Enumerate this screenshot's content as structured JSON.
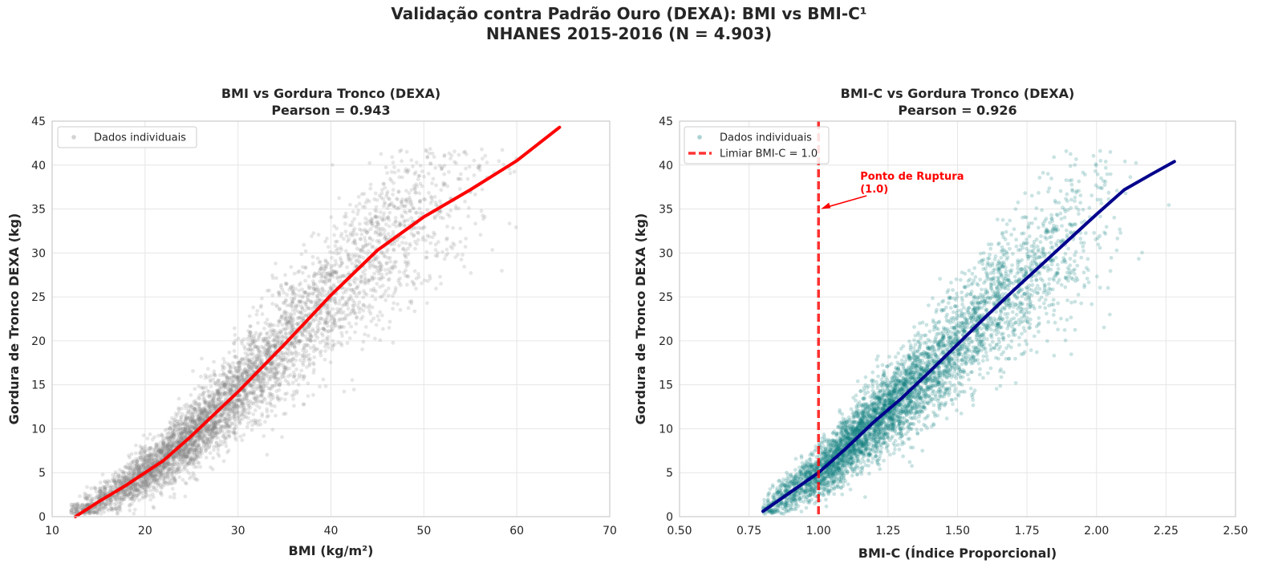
{
  "figure": {
    "title_line1": "Validação contra Padrão Ouro (DEXA): BMI vs BMI-C¹",
    "title_line2": "NHANES 2015-2016 (N = 4.903)"
  },
  "chart_data": [
    {
      "type": "scatter",
      "title_line1": "BMI vs Gordura Tronco (DEXA)",
      "title_line2": "Pearson = 0.943",
      "xlabel": "BMI (kg/m²)",
      "ylabel": "Gordura de Tronco DEXA (kg)",
      "xlim": [
        10,
        70
      ],
      "ylim": [
        0,
        45
      ],
      "xticks": [
        "10",
        "20",
        "30",
        "40",
        "50",
        "60",
        "70"
      ],
      "xtick_values": [
        10,
        20,
        30,
        40,
        50,
        60,
        70
      ],
      "yticks": [
        "0",
        "5",
        "10",
        "15",
        "20",
        "25",
        "30",
        "35",
        "40",
        "45"
      ],
      "ytick_values": [
        0,
        5,
        10,
        15,
        20,
        25,
        30,
        35,
        40,
        45
      ],
      "grid": true,
      "legend_position": "upper-left",
      "legend": [
        "Dados individuais"
      ],
      "scatter": {
        "name": "Dados individuais",
        "color": "#808080",
        "opacity": 0.2,
        "n_points_shown": 4903,
        "x_range": [
          12,
          65
        ],
        "trend_note": "dense cloud along the fit line; spread widening at higher BMI"
      },
      "fit_line": {
        "color": "#ff0000",
        "x": [
          12.5,
          15,
          18,
          20,
          22,
          25,
          28,
          30,
          35,
          40,
          45,
          50,
          55,
          60,
          64.6
        ],
        "y": [
          0,
          1.7,
          3.6,
          5.0,
          6.4,
          9.2,
          12.2,
          14.2,
          19.6,
          25.2,
          30.3,
          34.1,
          37.2,
          40.5,
          44.3
        ]
      }
    },
    {
      "type": "scatter",
      "title_line1": "BMI-C vs Gordura Tronco (DEXA)",
      "title_line2": "Pearson = 0.926",
      "xlabel": "BMI-C (Índice Proporcional)",
      "ylabel": "Gordura de Tronco DEXA (kg)",
      "xlim": [
        0.5,
        2.5
      ],
      "ylim": [
        0,
        45
      ],
      "xticks": [
        "0.50",
        "0.75",
        "1.00",
        "1.25",
        "1.50",
        "1.75",
        "2.00",
        "2.25",
        "2.50"
      ],
      "xtick_values": [
        0.5,
        0.75,
        1.0,
        1.25,
        1.5,
        1.75,
        2.0,
        2.25,
        2.5
      ],
      "yticks": [
        "0",
        "5",
        "10",
        "15",
        "20",
        "25",
        "30",
        "35",
        "40",
        "45"
      ],
      "ytick_values": [
        0,
        5,
        10,
        15,
        20,
        25,
        30,
        35,
        40,
        45
      ],
      "grid": true,
      "legend_position": "upper-left",
      "legend": [
        "Dados individuais",
        "Limiar BMI-C = 1.0"
      ],
      "scatter": {
        "name": "Dados individuais",
        "color": "#108080",
        "opacity": 0.22,
        "n_points_shown": 4903,
        "x_range": [
          0.8,
          2.28
        ]
      },
      "fit_line": {
        "color": "#00008b",
        "x": [
          0.8,
          0.9,
          1.0,
          1.1,
          1.2,
          1.3,
          1.4,
          1.5,
          1.6,
          1.7,
          1.8,
          1.9,
          2.0,
          2.1,
          2.2,
          2.28
        ],
        "y": [
          0.6,
          2.8,
          5.0,
          7.8,
          10.8,
          13.5,
          16.5,
          19.6,
          22.7,
          25.7,
          28.6,
          31.5,
          34.4,
          37.2,
          39.0,
          40.4
        ]
      },
      "threshold": {
        "name": "Limiar BMI-C = 1.0",
        "x": 1.0,
        "color": "#ff0000",
        "style": "dashed"
      },
      "annotation": {
        "line1": "Ponto de Ruptura",
        "line2": "(1.0)",
        "point": [
          1.0,
          35
        ],
        "text_at": [
          1.15,
          38.7
        ],
        "color": "#ff0000"
      }
    }
  ]
}
